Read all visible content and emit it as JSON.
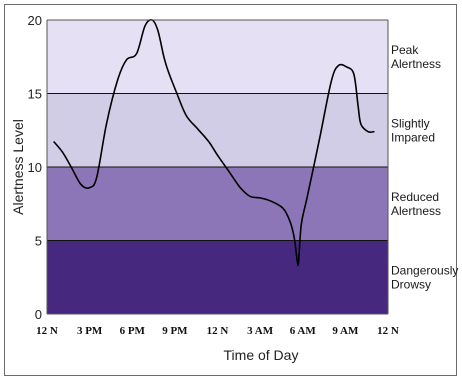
{
  "chart_data": {
    "type": "line",
    "title": "",
    "xlabel": "Time of Day",
    "ylabel": "Alertness Level",
    "x_ticks": [
      "12 N",
      "3 PM",
      "6 PM",
      "9 PM",
      "12 N",
      "3 AM",
      "6 AM",
      "9 AM",
      "12 N"
    ],
    "xlim": [
      0,
      24
    ],
    "ylim": [
      0,
      20
    ],
    "y_ticks": [
      "0",
      "5",
      "10",
      "15",
      "20"
    ],
    "grid": false,
    "legend": "none",
    "zones": [
      {
        "label": [
          "Peak",
          "Alertness"
        ],
        "from": 15,
        "to": 20,
        "color": "#e6e0f4"
      },
      {
        "label": [
          "Slightly",
          "Impared"
        ],
        "from": 10,
        "to": 15,
        "color": "#d2cde6"
      },
      {
        "label": [
          "Reduced",
          "Alertness"
        ],
        "from": 5,
        "to": 10,
        "color": "#8c76b7"
      },
      {
        "label": [
          "Dangerously",
          "Drowsy"
        ],
        "from": 0,
        "to": 5,
        "color": "#46297f"
      }
    ],
    "series": [
      {
        "color": "#000000",
        "x": [
          0.5,
          1.1,
          1.7,
          2.4,
          3.0,
          3.5,
          4.2,
          5.0,
          5.6,
          6.3,
          6.9,
          7.4,
          7.8,
          8.2,
          8.5,
          9.1,
          9.8,
          10.6,
          11.4,
          12.0,
          12.8,
          13.6,
          14.3,
          15.0,
          15.7,
          16.6,
          17.1,
          17.4,
          17.6,
          17.7,
          17.9,
          18.3,
          19.2,
          20.0,
          20.5,
          21.1,
          21.6,
          21.9,
          22.1,
          22.6,
          23.0
        ],
        "y": [
          11.7,
          11.0,
          10.0,
          8.8,
          8.6,
          9.3,
          13.0,
          16.0,
          17.3,
          17.7,
          19.6,
          20.0,
          19.3,
          17.6,
          16.6,
          15.1,
          13.5,
          12.6,
          11.7,
          10.8,
          9.7,
          8.6,
          8.0,
          7.9,
          7.7,
          7.2,
          6.3,
          5.2,
          3.7,
          3.5,
          6.1,
          7.9,
          12.0,
          15.8,
          16.9,
          16.8,
          16.3,
          14.1,
          12.9,
          12.4,
          12.4
        ]
      }
    ]
  }
}
